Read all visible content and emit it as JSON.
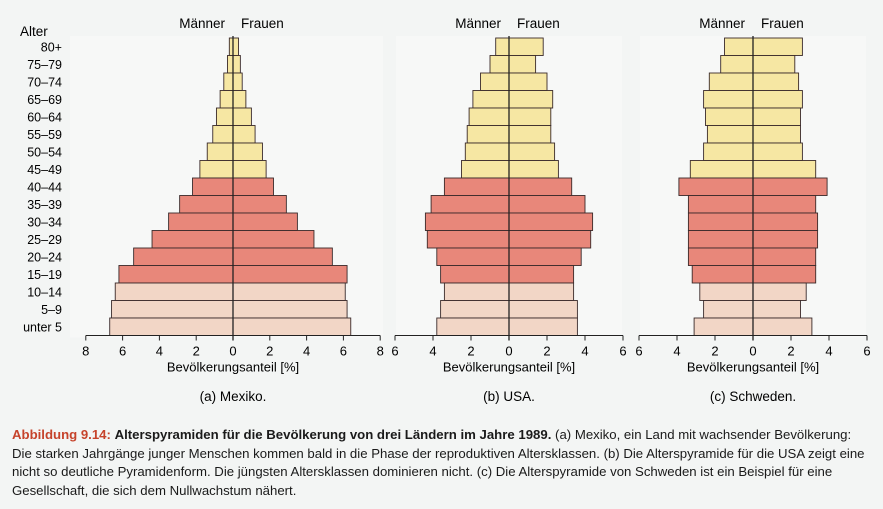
{
  "age_axis_title": "Alter",
  "age_groups": [
    "80+",
    "75–79",
    "70–74",
    "65–69",
    "60–64",
    "55–59",
    "50–54",
    "45–49",
    "40–44",
    "35–39",
    "30–34",
    "25–29",
    "20–24",
    "15–19",
    "10–14",
    "5–9",
    "unter 5"
  ],
  "colors": {
    "post_reproductive": "#f6e7a3",
    "reproductive": "#e8877a",
    "pre_reproductive": "#f2d6c6",
    "bar_outline": "#3a2a2a",
    "caption_accent": "#c6432b"
  },
  "caption": {
    "label": "Abbildung 9.14:",
    "title": "Alterspyramiden für die Bevölkerung von drei Ländern im Jahre 1989.",
    "text": "(a) Mexiko, ein Land mit wachsender Bevölkerung: Die starken Jahrgänge junger Menschen kommen bald in die Phase der reproduktiven Altersklassen. (b) Die Alterspyramide für die USA zeigt eine nicht so deutliche Pyramidenform. Die jüngsten Altersklassen dominieren nicht. (c) Die Alterspyramide von Schweden ist ein Beispiel für eine Gesellschaft, die sich dem Nullwachstum nähert."
  },
  "chart_data": [
    {
      "type": "bar",
      "subtitle": "(a)  Mexiko.",
      "left_label": "Männer",
      "right_label": "Frauen",
      "xlabel": "Bevölkerungsanteil [%]",
      "xlim": [
        -8,
        8
      ],
      "xticks": [
        "8",
        "6",
        "4",
        "2",
        "0",
        "2",
        "4",
        "6",
        "8"
      ],
      "categories": [
        "80+",
        "75–79",
        "70–74",
        "65–69",
        "60–64",
        "55–59",
        "50–54",
        "45–49",
        "40–44",
        "35–39",
        "30–34",
        "25–29",
        "20–24",
        "15–19",
        "10–14",
        "5–9",
        "unter 5"
      ],
      "series": [
        {
          "name": "Männer",
          "values": [
            0.2,
            0.3,
            0.5,
            0.7,
            0.9,
            1.1,
            1.4,
            1.8,
            2.2,
            2.9,
            3.5,
            4.4,
            5.4,
            6.2,
            6.4,
            6.6,
            6.7
          ]
        },
        {
          "name": "Frauen",
          "values": [
            0.3,
            0.4,
            0.5,
            0.7,
            1.0,
            1.2,
            1.6,
            1.8,
            2.2,
            2.9,
            3.5,
            4.4,
            5.4,
            6.2,
            6.1,
            6.2,
            6.4
          ]
        }
      ]
    },
    {
      "type": "bar",
      "subtitle": "(b)  USA.",
      "left_label": "Männer",
      "right_label": "Frauen",
      "xlabel": "Bevölkerungsanteil [%]",
      "xlim": [
        -6,
        6
      ],
      "xticks": [
        "6",
        "4",
        "2",
        "0",
        "2",
        "4",
        "6"
      ],
      "categories": [
        "80+",
        "75–79",
        "70–74",
        "65–69",
        "60–64",
        "55–59",
        "50–54",
        "45–49",
        "40–44",
        "35–39",
        "30–34",
        "25–29",
        "20–24",
        "15–19",
        "10–14",
        "5–9",
        "unter 5"
      ],
      "series": [
        {
          "name": "Männer",
          "values": [
            0.7,
            1.0,
            1.5,
            1.9,
            2.1,
            2.2,
            2.3,
            2.5,
            3.4,
            4.1,
            4.4,
            4.3,
            3.8,
            3.6,
            3.4,
            3.6,
            3.8
          ]
        },
        {
          "name": "Frauen",
          "values": [
            1.8,
            1.4,
            2.0,
            2.3,
            2.2,
            2.2,
            2.4,
            2.6,
            3.3,
            4.0,
            4.4,
            4.3,
            3.8,
            3.4,
            3.4,
            3.6,
            3.6
          ]
        }
      ]
    },
    {
      "type": "bar",
      "subtitle": "(c)  Schweden.",
      "left_label": "Männer",
      "right_label": "Frauen",
      "xlabel": "Bevölkerungsanteil [%]",
      "xlim": [
        -6,
        6
      ],
      "xticks": [
        "6",
        "4",
        "2",
        "0",
        "2",
        "4",
        "6"
      ],
      "categories": [
        "80+",
        "75–79",
        "70–74",
        "65–69",
        "60–64",
        "55–59",
        "50–54",
        "45–49",
        "40–44",
        "35–39",
        "30–34",
        "25–29",
        "20–24",
        "15–19",
        "10–14",
        "5–9",
        "unter 5"
      ],
      "series": [
        {
          "name": "Männer",
          "values": [
            1.5,
            1.7,
            2.3,
            2.6,
            2.5,
            2.4,
            2.6,
            3.3,
            3.9,
            3.4,
            3.4,
            3.4,
            3.4,
            3.2,
            2.8,
            2.6,
            3.1
          ]
        },
        {
          "name": "Frauen",
          "values": [
            2.6,
            2.2,
            2.4,
            2.6,
            2.5,
            2.5,
            2.6,
            3.3,
            3.9,
            3.3,
            3.4,
            3.4,
            3.3,
            3.3,
            2.8,
            2.5,
            3.1
          ]
        }
      ]
    }
  ]
}
